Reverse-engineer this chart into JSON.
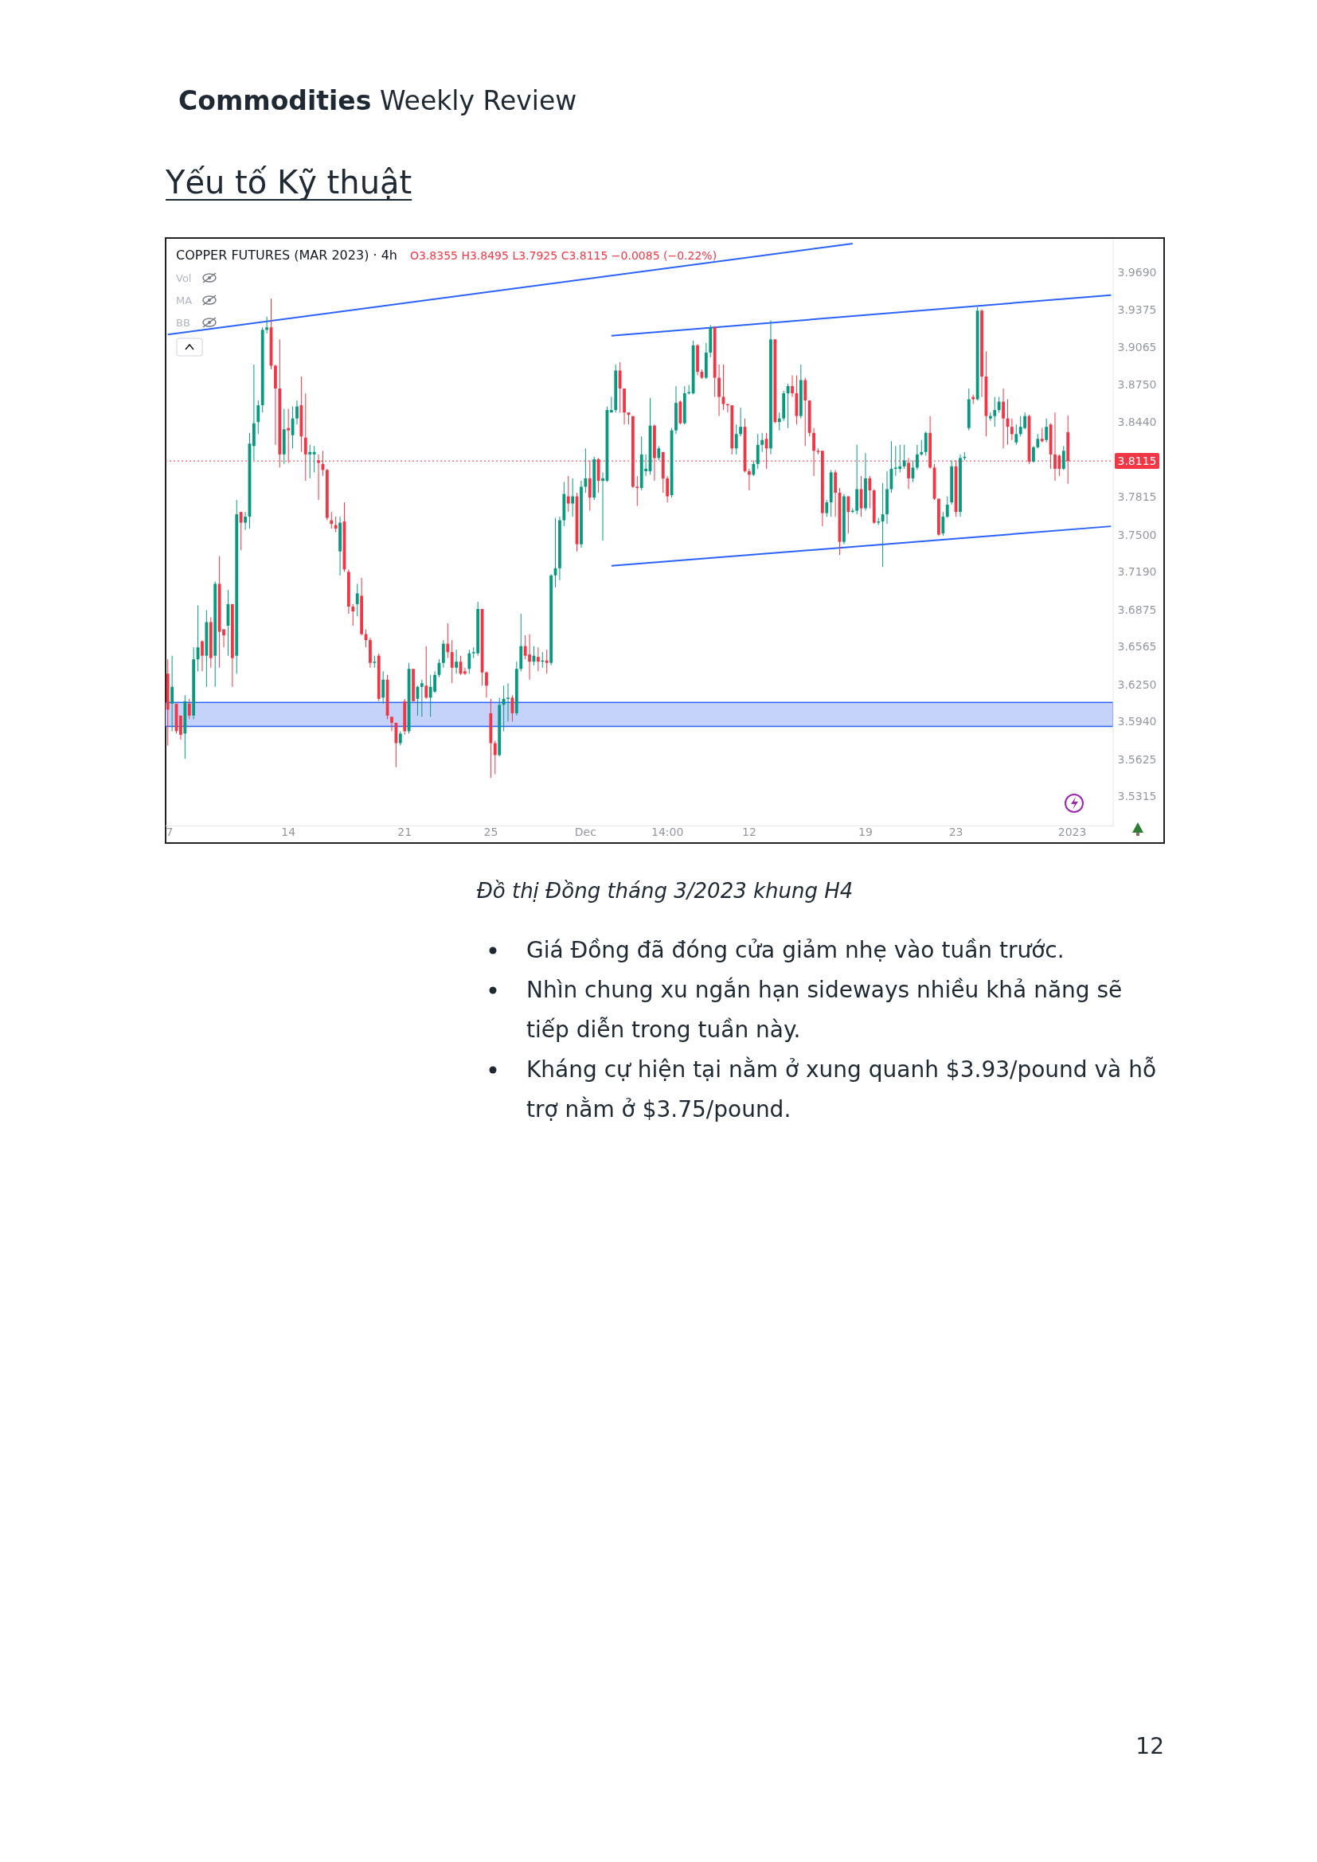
{
  "chart_data": {
    "type": "candlestick",
    "title": "COPPER FUTURES (MAR 2023) · 4h",
    "subtitle": "O3.8355 H3.8495 L3.7925 C3.8115 −0.0085 (−0.22%)",
    "annotations": [
      "Commodities",
      "Weekly Review",
      "Yếu tố Kỹ thuật",
      "Vol",
      "MA",
      "BB",
      "Đồ thị Đồng tháng 3/2023 khung H4",
      "Giá Đồng đã đóng cửa giảm nhẹ vào tuần trước.",
      "Nhìn chung xu ngắn hạn sideways nhiều khả năng sẽ tiếp diễn trong tuần này.",
      "Kháng cự hiện tại nằm ở xung quanh $3.93/pound và hỗ trợ nằm ở $3.75/pound.",
      "12"
    ],
    "categories": [
      "7",
      null,
      null,
      null,
      null,
      null,
      null,
      null,
      null,
      null,
      null,
      null,
      null,
      null,
      null,
      null,
      null,
      null,
      null,
      null,
      null,
      null,
      null,
      null,
      null,
      null,
      null,
      null,
      "14",
      null,
      null,
      null,
      null,
      null,
      null,
      null,
      null,
      null,
      null,
      null,
      null,
      null,
      null,
      null,
      null,
      null,
      null,
      null,
      null,
      null,
      null,
      null,
      null,
      null,
      null,
      "21",
      null,
      null,
      null,
      null,
      null,
      null,
      null,
      null,
      null,
      null,
      null,
      null,
      null,
      null,
      null,
      null,
      null,
      null,
      null,
      "25",
      null,
      null,
      null,
      null,
      null,
      null,
      null,
      null,
      null,
      null,
      null,
      null,
      null,
      null,
      null,
      null,
      null,
      null,
      null,
      null,
      null,
      "Dec",
      null,
      null,
      null,
      null,
      null,
      null,
      null,
      null,
      null,
      null,
      null,
      null,
      null,
      null,
      null,
      null,
      null,
      null,
      "14:00",
      null,
      null,
      null,
      null,
      null,
      null,
      null,
      null,
      null,
      null,
      null,
      null,
      null,
      null,
      null,
      null,
      null,
      null,
      "12",
      null,
      null,
      null,
      null,
      null,
      null,
      null,
      null,
      null,
      null,
      null,
      null,
      null,
      null,
      null,
      null,
      null,
      null,
      null,
      null,
      null,
      null,
      null,
      null,
      null,
      null,
      "19",
      null,
      null,
      null,
      null,
      null,
      null,
      null,
      null,
      null,
      null,
      null,
      null,
      null,
      null,
      null,
      null,
      null,
      null,
      null,
      null,
      "23",
      null,
      null,
      null,
      null,
      null,
      null,
      null,
      null,
      null,
      null,
      null,
      null,
      null,
      null,
      null,
      null,
      null,
      null,
      null,
      null,
      null,
      null,
      null,
      null,
      null,
      null,
      "2023",
      null,
      null,
      null,
      null,
      null,
      null,
      null,
      null,
      null
    ],
    "ylim": [
      3.507,
      3.996
    ],
    "yticks": [
      {
        "value": 3.969,
        "label": "3.9690"
      },
      3.9375,
      3.9065,
      {
        "value": 3.875,
        "label": "3.8750"
      },
      {
        "value": 3.844,
        "label": "3.8440"
      },
      3.7815,
      {
        "value": 3.75,
        "label": "3.7500"
      },
      {
        "value": 3.719,
        "label": "3.7190"
      },
      3.6875,
      3.6565,
      {
        "value": 3.625,
        "label": "3.6250"
      },
      {
        "value": 3.594,
        "label": "3.5940"
      },
      3.5625,
      3.5315
    ],
    "ohlc": [
      [
        3.634,
        3.646,
        3.574,
        3.604
      ],
      [
        3.609,
        3.649,
        3.586,
        3.623
      ],
      [
        3.609,
        3.609,
        3.584,
        3.586
      ],
      [
        3.599,
        3.599,
        3.579,
        3.583
      ],
      [
        3.584,
        3.616,
        3.563,
        3.611
      ],
      [
        3.609,
        3.613,
        3.596,
        3.599
      ],
      [
        3.599,
        3.656,
        3.596,
        3.646
      ],
      [
        3.646,
        3.691,
        3.636,
        3.656
      ],
      [
        3.661,
        3.662,
        3.636,
        3.649
      ],
      [
        3.649,
        3.687,
        3.623,
        3.677
      ],
      [
        3.677,
        3.681,
        3.639,
        3.647
      ],
      [
        3.649,
        3.711,
        3.623,
        3.709
      ],
      [
        3.709,
        3.732,
        3.639,
        3.669
      ],
      [
        3.671,
        3.671,
        3.656,
        3.666
      ],
      [
        3.674,
        3.704,
        3.649,
        3.692
      ],
      [
        3.692,
        3.692,
        3.623,
        3.647
      ],
      [
        3.649,
        3.779,
        3.634,
        3.767
      ],
      [
        3.769,
        3.769,
        3.737,
        3.76
      ],
      [
        3.76,
        3.769,
        3.754,
        3.765
      ],
      [
        3.765,
        3.835,
        3.755,
        3.826
      ],
      [
        3.824,
        3.892,
        3.812,
        3.843
      ],
      [
        3.844,
        3.862,
        3.834,
        3.858
      ],
      [
        3.858,
        3.923,
        3.852,
        3.921
      ],
      [
        3.921,
        3.932,
        3.918,
        3.923
      ],
      [
        3.923,
        3.947,
        3.888,
        3.891
      ],
      [
        3.891,
        3.892,
        3.825,
        3.872
      ],
      [
        3.872,
        3.913,
        3.806,
        3.817
      ],
      [
        3.817,
        3.855,
        3.809,
        3.838
      ],
      [
        3.839,
        3.855,
        3.81,
        3.837
      ],
      [
        3.833,
        3.857,
        3.822,
        3.847
      ],
      [
        3.847,
        3.862,
        3.842,
        3.857
      ],
      [
        3.858,
        3.882,
        3.819,
        3.832
      ],
      [
        3.831,
        3.868,
        3.795,
        3.817
      ],
      [
        3.817,
        3.825,
        3.797,
        3.819
      ],
      [
        3.817,
        3.824,
        3.802,
        3.819
      ],
      [
        3.812,
        3.817,
        3.779,
        3.81
      ],
      [
        3.809,
        3.82,
        3.799,
        3.804
      ],
      [
        3.804,
        3.805,
        3.762,
        3.764
      ],
      [
        3.762,
        3.769,
        3.755,
        3.759
      ],
      [
        3.758,
        3.765,
        3.752,
        3.755
      ],
      [
        3.736,
        3.765,
        3.716,
        3.76
      ],
      [
        3.761,
        3.777,
        3.719,
        3.721
      ],
      [
        3.719,
        3.721,
        3.684,
        3.69
      ],
      [
        3.69,
        3.692,
        3.674,
        3.686
      ],
      [
        3.692,
        3.709,
        3.682,
        3.701
      ],
      [
        3.699,
        3.714,
        3.666,
        3.667
      ],
      [
        3.667,
        3.671,
        3.656,
        3.662
      ],
      [
        3.662,
        3.664,
        3.639,
        3.643
      ],
      [
        3.643,
        3.649,
        3.639,
        3.644
      ],
      [
        3.649,
        3.651,
        3.611,
        3.613
      ],
      [
        3.614,
        3.636,
        3.609,
        3.629
      ],
      [
        3.629,
        3.633,
        3.596,
        3.599
      ],
      [
        3.598,
        3.598,
        3.586,
        3.593
      ],
      [
        3.593,
        3.593,
        3.556,
        3.576
      ],
      [
        3.576,
        3.586,
        3.574,
        3.584
      ],
      [
        3.611,
        3.613,
        3.583,
        3.586
      ],
      [
        3.586,
        3.643,
        3.584,
        3.638
      ],
      [
        3.638,
        3.638,
        3.611,
        3.611
      ],
      [
        3.613,
        3.624,
        3.599,
        3.623
      ],
      [
        3.623,
        3.629,
        3.598,
        3.626
      ],
      [
        3.624,
        3.657,
        3.613,
        3.614
      ],
      [
        3.614,
        3.633,
        3.598,
        3.623
      ],
      [
        3.619,
        3.636,
        3.618,
        3.633
      ],
      [
        3.633,
        3.646,
        3.631,
        3.643
      ],
      [
        3.643,
        3.662,
        3.639,
        3.659
      ],
      [
        3.659,
        3.676,
        3.647,
        3.652
      ],
      [
        3.652,
        3.662,
        3.626,
        3.639
      ],
      [
        3.639,
        3.654,
        3.634,
        3.644
      ],
      [
        3.644,
        3.649,
        3.633,
        3.634
      ],
      [
        3.636,
        3.639,
        3.633,
        3.634
      ],
      [
        3.638,
        3.654,
        3.634,
        3.651
      ],
      [
        3.651,
        3.656,
        3.647,
        3.652
      ],
      [
        3.651,
        3.694,
        3.649,
        3.688
      ],
      [
        3.688,
        3.688,
        3.624,
        3.635
      ],
      [
        3.635,
        3.636,
        3.614,
        3.624
      ],
      [
        3.601,
        3.613,
        3.547,
        3.576
      ],
      [
        3.576,
        3.578,
        3.55,
        3.566
      ],
      [
        3.566,
        3.614,
        3.565,
        3.608
      ],
      [
        3.608,
        3.624,
        3.586,
        3.613
      ],
      [
        3.613,
        3.626,
        3.594,
        3.614
      ],
      [
        3.614,
        3.616,
        3.594,
        3.601
      ],
      [
        3.601,
        3.644,
        3.599,
        3.638
      ],
      [
        3.638,
        3.684,
        3.636,
        3.657
      ],
      [
        3.657,
        3.666,
        3.646,
        3.649
      ],
      [
        3.65,
        3.667,
        3.629,
        3.644
      ],
      [
        3.644,
        3.657,
        3.641,
        3.649
      ],
      [
        3.648,
        3.656,
        3.636,
        3.644
      ],
      [
        3.644,
        3.652,
        3.639,
        3.645
      ],
      [
        3.645,
        3.654,
        3.634,
        3.643
      ],
      [
        3.643,
        3.717,
        3.641,
        3.716
      ],
      [
        3.716,
        3.764,
        3.706,
        3.722
      ],
      [
        3.722,
        3.765,
        3.712,
        3.762
      ],
      [
        3.762,
        3.794,
        3.757,
        3.784
      ],
      [
        3.782,
        3.799,
        3.769,
        3.776
      ],
      [
        3.776,
        3.797,
        3.765,
        3.782
      ],
      [
        3.782,
        3.785,
        3.736,
        3.742
      ],
      [
        3.742,
        3.795,
        3.739,
        3.79
      ],
      [
        3.79,
        3.822,
        3.785,
        3.797
      ],
      [
        3.797,
        3.812,
        3.77,
        3.781
      ],
      [
        3.781,
        3.815,
        3.779,
        3.813
      ],
      [
        3.813,
        3.814,
        3.785,
        3.795
      ],
      [
        3.795,
        3.802,
        3.745,
        3.797
      ],
      [
        3.795,
        3.857,
        3.794,
        3.854
      ],
      [
        3.852,
        3.865,
        3.852,
        3.854
      ],
      [
        3.854,
        3.892,
        3.852,
        3.887
      ],
      [
        3.887,
        3.894,
        3.852,
        3.872
      ],
      [
        3.872,
        3.872,
        3.842,
        3.852
      ],
      [
        3.852,
        3.852,
        3.842,
        3.85
      ],
      [
        3.849,
        3.849,
        3.789,
        3.79
      ],
      [
        3.79,
        3.799,
        3.774,
        3.789
      ],
      [
        3.789,
        3.832,
        3.787,
        3.817
      ],
      [
        3.803,
        3.817,
        3.799,
        3.805
      ],
      [
        3.803,
        3.864,
        3.8,
        3.841
      ],
      [
        3.841,
        3.842,
        3.795,
        3.814
      ],
      [
        3.814,
        3.824,
        3.812,
        3.822
      ],
      [
        3.819,
        3.819,
        3.785,
        3.797
      ],
      [
        3.797,
        3.799,
        3.777,
        3.782
      ],
      [
        3.783,
        3.839,
        3.781,
        3.837
      ],
      [
        3.837,
        3.874,
        3.834,
        3.86
      ],
      [
        3.861,
        3.862,
        3.842,
        3.843
      ],
      [
        3.843,
        3.874,
        3.842,
        3.868
      ],
      [
        3.868,
        3.875,
        3.867,
        3.869
      ],
      [
        3.868,
        3.912,
        3.867,
        3.908
      ],
      [
        3.908,
        3.909,
        3.883,
        3.886
      ],
      [
        3.886,
        3.888,
        3.88,
        3.881
      ],
      [
        3.881,
        3.91,
        3.88,
        3.902
      ],
      [
        3.902,
        3.925,
        3.898,
        3.923
      ],
      [
        3.923,
        3.924,
        3.865,
        3.881
      ],
      [
        3.881,
        3.892,
        3.849,
        3.865
      ],
      [
        3.865,
        3.892,
        3.854,
        3.859
      ],
      [
        3.859,
        3.859,
        3.852,
        3.858
      ],
      [
        3.858,
        3.858,
        3.817,
        3.822
      ],
      [
        3.822,
        3.842,
        3.817,
        3.834
      ],
      [
        3.834,
        3.856,
        3.832,
        3.84
      ],
      [
        3.84,
        3.847,
        3.802,
        3.803
      ],
      [
        3.803,
        3.805,
        3.787,
        3.8
      ],
      [
        3.8,
        3.812,
        3.799,
        3.809
      ],
      [
        3.809,
        3.834,
        3.805,
        3.825
      ],
      [
        3.825,
        3.835,
        3.819,
        3.829
      ],
      [
        3.83,
        3.835,
        3.805,
        3.822
      ],
      [
        3.822,
        3.929,
        3.817,
        3.913
      ],
      [
        3.913,
        3.913,
        3.843,
        3.844
      ],
      [
        3.844,
        3.852,
        3.837,
        3.847
      ],
      [
        3.847,
        3.87,
        3.845,
        3.868
      ],
      [
        3.868,
        3.876,
        3.839,
        3.874
      ],
      [
        3.874,
        3.883,
        3.865,
        3.868
      ],
      [
        3.868,
        3.883,
        3.842,
        3.849
      ],
      [
        3.849,
        3.892,
        3.847,
        3.879
      ],
      [
        3.879,
        3.881,
        3.824,
        3.862
      ],
      [
        3.862,
        3.862,
        3.832,
        3.835
      ],
      [
        3.835,
        3.839,
        3.799,
        3.82
      ],
      [
        3.82,
        3.822,
        3.817,
        3.819
      ],
      [
        3.82,
        3.82,
        3.757,
        3.768
      ],
      [
        3.768,
        3.779,
        3.765,
        3.777
      ],
      [
        3.777,
        3.804,
        3.765,
        3.802
      ],
      [
        3.802,
        3.804,
        3.765,
        3.785
      ],
      [
        3.785,
        3.789,
        3.733,
        3.744
      ],
      [
        3.744,
        3.784,
        3.742,
        3.782
      ],
      [
        3.782,
        3.782,
        3.751,
        3.769
      ],
      [
        3.769,
        3.772,
        3.768,
        3.77
      ],
      [
        3.77,
        3.825,
        3.767,
        3.788
      ],
      [
        3.788,
        3.799,
        3.765,
        3.772
      ],
      [
        3.772,
        3.818,
        3.77,
        3.797
      ],
      [
        3.797,
        3.799,
        3.772,
        3.787
      ],
      [
        3.787,
        3.788,
        3.759,
        3.76
      ],
      [
        3.76,
        3.764,
        3.758,
        3.761
      ],
      [
        3.761,
        3.793,
        3.723,
        3.767
      ],
      [
        3.767,
        3.803,
        3.759,
        3.788
      ],
      [
        3.788,
        3.828,
        3.785,
        3.805
      ],
      [
        3.805,
        3.824,
        3.799,
        3.806
      ],
      [
        3.805,
        3.825,
        3.802,
        3.807
      ],
      [
        3.807,
        3.825,
        3.805,
        3.812
      ],
      [
        3.81,
        3.814,
        3.788,
        3.797
      ],
      [
        3.797,
        3.812,
        3.794,
        3.806
      ],
      [
        3.806,
        3.825,
        3.804,
        3.817
      ],
      [
        3.817,
        3.829,
        3.816,
        3.819
      ],
      [
        3.819,
        3.836,
        3.816,
        3.835
      ],
      [
        3.835,
        3.849,
        3.805,
        3.806
      ],
      [
        3.806,
        3.809,
        3.779,
        3.78
      ],
      [
        3.78,
        3.78,
        3.749,
        3.75
      ],
      [
        3.751,
        3.769,
        3.749,
        3.765
      ],
      [
        3.765,
        3.782,
        3.764,
        3.775
      ],
      [
        3.777,
        3.812,
        3.775,
        3.807
      ],
      [
        3.807,
        3.812,
        3.765,
        3.769
      ],
      [
        3.769,
        3.817,
        3.765,
        3.814
      ],
      [
        3.814,
        3.819,
        3.812,
        3.815
      ],
      [
        3.839,
        3.872,
        3.837,
        3.863
      ],
      [
        3.865,
        3.867,
        3.859,
        3.863
      ],
      [
        3.863,
        3.94,
        3.862,
        3.937
      ],
      [
        3.937,
        3.938,
        3.865,
        3.882
      ],
      [
        3.882,
        3.903,
        3.832,
        3.849
      ],
      [
        3.847,
        3.852,
        3.845,
        3.849
      ],
      [
        3.849,
        3.865,
        3.84,
        3.854
      ],
      [
        3.854,
        3.865,
        3.852,
        3.861
      ],
      [
        3.861,
        3.872,
        3.822,
        3.847
      ],
      [
        3.847,
        3.863,
        3.825,
        3.84
      ],
      [
        3.84,
        3.847,
        3.829,
        3.834
      ],
      [
        3.827,
        3.842,
        3.825,
        3.834
      ],
      [
        3.834,
        3.849,
        3.832,
        3.84
      ],
      [
        3.839,
        3.852,
        3.838,
        3.849
      ],
      [
        3.849,
        3.85,
        3.809,
        3.811
      ],
      [
        3.811,
        3.824,
        3.81,
        3.823
      ],
      [
        3.823,
        3.834,
        3.822,
        3.83
      ],
      [
        3.83,
        3.839,
        3.827,
        3.828
      ],
      [
        3.829,
        3.847,
        3.827,
        3.84
      ],
      [
        3.842,
        3.843,
        3.805,
        3.817
      ],
      [
        3.817,
        3.852,
        3.795,
        3.805
      ],
      [
        3.816,
        3.817,
        3.799,
        3.805
      ],
      [
        3.805,
        3.824,
        3.804,
        3.82
      ],
      [
        3.8355,
        3.8495,
        3.7925,
        3.8115
      ],
      null,
      null,
      null,
      null,
      null,
      null,
      null,
      null,
      null,
      null
    ],
    "series": [
      {
        "type": "line",
        "color": "#2962ff",
        "values": [
          3.917,
          null,
          null,
          null,
          null,
          null,
          null,
          null,
          null,
          null,
          null,
          null,
          null,
          null,
          null,
          null,
          null,
          null,
          null,
          null,
          null,
          null,
          null,
          null,
          null,
          null,
          null,
          null,
          null,
          null,
          null,
          null,
          null,
          null,
          null,
          null,
          null,
          null,
          null,
          null,
          null,
          null,
          null,
          null,
          null,
          null,
          null,
          null,
          null,
          null,
          null,
          null,
          null,
          null,
          null,
          null,
          null,
          null,
          null,
          null,
          null,
          null,
          null,
          null,
          null,
          null,
          null,
          null,
          null,
          null,
          null,
          null,
          null,
          null,
          null,
          null,
          null,
          null,
          null,
          null,
          null,
          null,
          null,
          null,
          null,
          null,
          null,
          null,
          null,
          null,
          null,
          null,
          null,
          null,
          null,
          null,
          null,
          null,
          null,
          null,
          null,
          null,
          null,
          null,
          null,
          null,
          null,
          null,
          null,
          null,
          null,
          null,
          null,
          null,
          null,
          null,
          null,
          null,
          null,
          null,
          null,
          null,
          null,
          null,
          null,
          null,
          null,
          null,
          null,
          null,
          null,
          null,
          null,
          null,
          null,
          null,
          null,
          null,
          null,
          null,
          null,
          null,
          null,
          null,
          null,
          null,
          null,
          null,
          null,
          null,
          null,
          null,
          null,
          null,
          null,
          null,
          null,
          null,
          null,
          3.993,
          null,
          null,
          null,
          null,
          null,
          null,
          null,
          null,
          null,
          null,
          null,
          null,
          null,
          null,
          null,
          null,
          null,
          null,
          null,
          null,
          null,
          null,
          null,
          null,
          null,
          null,
          null,
          null,
          null,
          null,
          null,
          null,
          null,
          null,
          null,
          null,
          null,
          null,
          null,
          null,
          null,
          null,
          null,
          null,
          null,
          null,
          null,
          null,
          null,
          null,
          null,
          null,
          null,
          null,
          null,
          null,
          null,
          null,
          null,
          null
        ]
      },
      {
        "type": "line",
        "color": "#2962ff",
        "values": [
          null,
          null,
          null,
          null,
          null,
          null,
          null,
          null,
          null,
          null,
          null,
          null,
          null,
          null,
          null,
          null,
          null,
          null,
          null,
          null,
          null,
          null,
          null,
          null,
          null,
          null,
          null,
          null,
          null,
          null,
          null,
          null,
          null,
          null,
          null,
          null,
          null,
          null,
          null,
          null,
          null,
          null,
          null,
          null,
          null,
          null,
          null,
          null,
          null,
          null,
          null,
          null,
          null,
          null,
          null,
          null,
          null,
          null,
          null,
          null,
          null,
          null,
          null,
          null,
          null,
          null,
          null,
          null,
          null,
          null,
          null,
          null,
          null,
          null,
          null,
          null,
          null,
          null,
          null,
          null,
          null,
          null,
          null,
          null,
          null,
          null,
          null,
          null,
          null,
          null,
          null,
          null,
          null,
          null,
          null,
          null,
          null,
          null,
          null,
          null,
          null,
          null,
          null,
          3.916,
          null,
          null,
          null,
          null,
          null,
          null,
          null,
          null,
          null,
          null,
          null,
          null,
          null,
          null,
          null,
          null,
          null,
          null,
          null,
          null,
          null,
          null,
          null,
          null,
          null,
          null,
          null,
          null,
          null,
          null,
          null,
          null,
          null,
          null,
          null,
          null,
          null,
          null,
          null,
          null,
          null,
          null,
          null,
          null,
          null,
          null,
          null,
          null,
          null,
          null,
          null,
          null,
          null,
          null,
          null,
          null,
          null,
          null,
          null,
          null,
          null,
          null,
          null,
          null,
          null,
          null,
          null,
          null,
          null,
          null,
          null,
          null,
          null,
          null,
          null,
          null,
          null,
          null,
          null,
          null,
          null,
          null,
          null,
          null,
          null,
          null,
          null,
          null,
          null,
          null,
          null,
          null,
          null,
          null,
          null,
          null,
          null,
          null,
          null,
          null,
          null,
          null,
          null,
          null,
          null,
          null,
          null,
          null,
          null,
          null,
          null,
          null,
          null,
          null,
          null,
          3.95
        ]
      },
      {
        "type": "line",
        "color": "#2962ff",
        "values": [
          null,
          null,
          null,
          null,
          null,
          null,
          null,
          null,
          null,
          null,
          null,
          null,
          null,
          null,
          null,
          null,
          null,
          null,
          null,
          null,
          null,
          null,
          null,
          null,
          null,
          null,
          null,
          null,
          null,
          null,
          null,
          null,
          null,
          null,
          null,
          null,
          null,
          null,
          null,
          null,
          null,
          null,
          null,
          null,
          null,
          null,
          null,
          null,
          null,
          null,
          null,
          null,
          null,
          null,
          null,
          null,
          null,
          null,
          null,
          null,
          null,
          null,
          null,
          null,
          null,
          null,
          null,
          null,
          null,
          null,
          null,
          null,
          null,
          null,
          null,
          null,
          null,
          null,
          null,
          null,
          null,
          null,
          null,
          null,
          null,
          null,
          null,
          null,
          null,
          null,
          null,
          null,
          null,
          null,
          null,
          null,
          null,
          null,
          null,
          null,
          null,
          null,
          null,
          3.724,
          null,
          null,
          null,
          null,
          null,
          null,
          null,
          null,
          null,
          null,
          null,
          null,
          null,
          null,
          null,
          null,
          null,
          null,
          null,
          null,
          null,
          null,
          null,
          null,
          null,
          null,
          null,
          null,
          null,
          null,
          null,
          null,
          null,
          null,
          null,
          null,
          null,
          null,
          null,
          null,
          null,
          null,
          null,
          null,
          null,
          null,
          null,
          null,
          null,
          null,
          null,
          null,
          null,
          null,
          null,
          null,
          null,
          null,
          null,
          null,
          null,
          null,
          null,
          null,
          null,
          null,
          null,
          null,
          null,
          null,
          null,
          null,
          null,
          null,
          null,
          null,
          null,
          null,
          null,
          null,
          null,
          null,
          null,
          null,
          null,
          null,
          null,
          null,
          null,
          null,
          null,
          null,
          null,
          null,
          null,
          null,
          null,
          null,
          null,
          null,
          null,
          null,
          null,
          null,
          null,
          null,
          null,
          null,
          null,
          null,
          null,
          null,
          null,
          null,
          null,
          3.757
        ]
      }
    ],
    "ref_lines": [
      {
        "axis": "y",
        "value": 3.8115,
        "label": "3.8115",
        "color": "#f23645",
        "line_style": "dotted"
      }
    ],
    "bands": [
      {
        "axis": "y",
        "from": 3.59,
        "to": 3.61,
        "color": "#c5d3fb"
      }
    ]
  }
}
